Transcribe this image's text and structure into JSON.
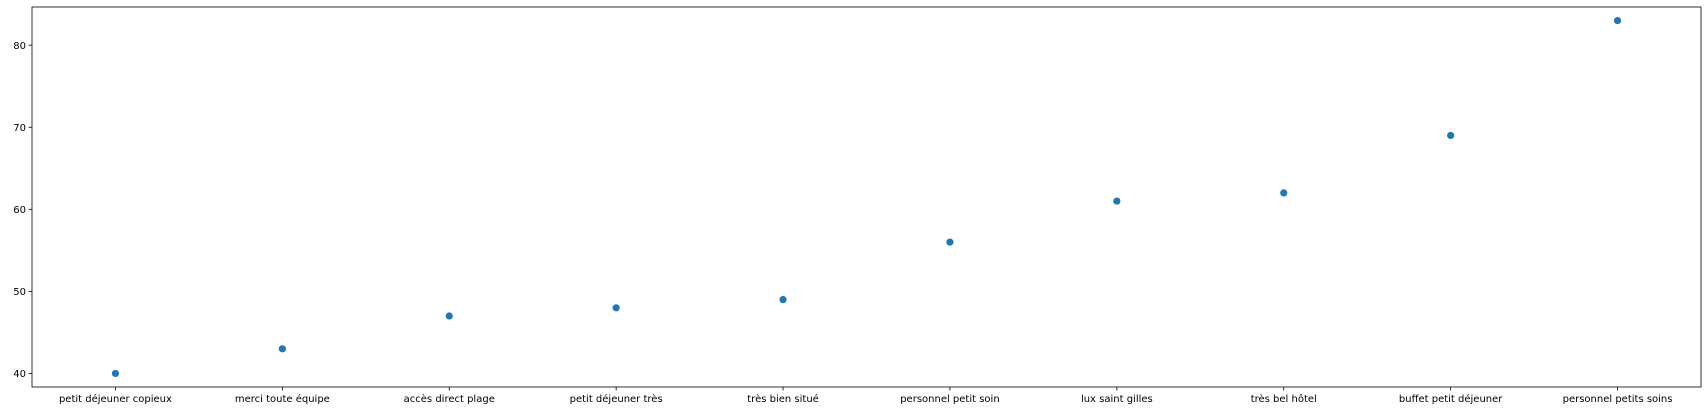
{
  "chart_data": {
    "type": "scatter",
    "categories": [
      "petit déjeuner copieux",
      "merci toute équipe",
      "accès direct plage",
      "petit déjeuner très",
      "très bien situé",
      "personnel petit soin",
      "lux saint gilles",
      "très bel hôtel",
      "buffet petit déjeuner",
      "personnel petits soins"
    ],
    "values": [
      40,
      43,
      47,
      48,
      49,
      56,
      61,
      62,
      69,
      83
    ],
    "y_ticks": [
      40,
      50,
      60,
      70,
      80
    ],
    "ylim": [
      38.35,
      84.65
    ],
    "color": "#1f77b4",
    "grid": false,
    "title": "",
    "xlabel": "",
    "ylabel": ""
  }
}
